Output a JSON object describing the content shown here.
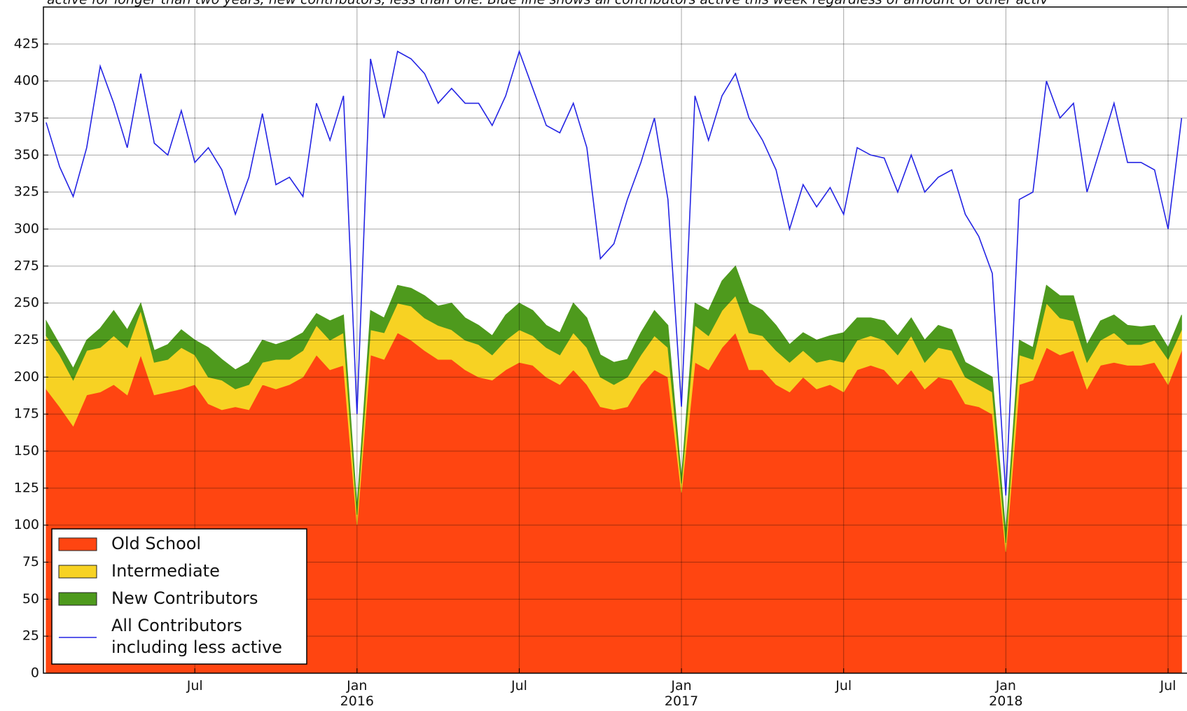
{
  "chart_data": {
    "type": "area",
    "stacked": true,
    "subtitle": "active for longer than two years, new contributors, less than one. Blue line shows all contributors active this week regardless of amount of other activ",
    "x": [
      0.5,
      1,
      1.5,
      2,
      2.5,
      3,
      3.5,
      4,
      4.5,
      5,
      5.5,
      6,
      6.5,
      7,
      7.5,
      8,
      8.5,
      9,
      9.5,
      10,
      10.5,
      11,
      11.5,
      12,
      12.5,
      13,
      13.5,
      14,
      14.5,
      15,
      15.5,
      16,
      16.5,
      17,
      17.5,
      18,
      18.5,
      19,
      19.5,
      20,
      20.5,
      21,
      21.5,
      22,
      22.5,
      23,
      23.5,
      24,
      24.5,
      25,
      25.5,
      26,
      26.5,
      27,
      27.5,
      28,
      28.5,
      29,
      29.5,
      30,
      30.5,
      31,
      31.5,
      32,
      32.5,
      33,
      33.5,
      34,
      34.5,
      35,
      35.5,
      36,
      36.5,
      37,
      37.5,
      38,
      38.5,
      39,
      39.5,
      40,
      40.5,
      41,
      41.5,
      42,
      42.5
    ],
    "series": [
      {
        "name": "Old School",
        "type": "area",
        "color": "#ff4511",
        "values": [
          192,
          180,
          167,
          188,
          190,
          195,
          188,
          215,
          188,
          190,
          192,
          195,
          182,
          178,
          180,
          178,
          195,
          192,
          195,
          200,
          215,
          205,
          208,
          100,
          215,
          212,
          230,
          225,
          218,
          212,
          212,
          205,
          200,
          198,
          205,
          210,
          208,
          200,
          195,
          205,
          195,
          180,
          178,
          180,
          195,
          205,
          200,
          122,
          210,
          205,
          220,
          230,
          205,
          205,
          195,
          190,
          200,
          192,
          195,
          190,
          205,
          208,
          205,
          195,
          205,
          192,
          200,
          198,
          182,
          180,
          175,
          82,
          195,
          198,
          220,
          215,
          218,
          192,
          208,
          210,
          208,
          208,
          210,
          195,
          218
        ]
      },
      {
        "name": "Intermediate",
        "type": "area",
        "color": "#f7d223",
        "values": [
          36,
          35,
          31,
          30,
          30,
          33,
          32,
          30,
          22,
          22,
          28,
          20,
          18,
          20,
          12,
          17,
          15,
          20,
          17,
          18,
          20,
          20,
          22,
          7,
          17,
          18,
          20,
          23,
          22,
          23,
          20,
          20,
          22,
          17,
          20,
          22,
          20,
          20,
          20,
          25,
          25,
          20,
          17,
          20,
          20,
          23,
          20,
          6,
          25,
          23,
          25,
          25,
          25,
          23,
          23,
          20,
          18,
          18,
          17,
          20,
          20,
          20,
          20,
          20,
          23,
          18,
          20,
          20,
          18,
          15,
          15,
          6,
          20,
          14,
          30,
          25,
          20,
          18,
          17,
          20,
          14,
          14,
          15,
          17,
          14
        ]
      },
      {
        "name": "New Contributors",
        "type": "area",
        "color": "#4e9a1d",
        "values": [
          10,
          7,
          8,
          7,
          13,
          17,
          12,
          5,
          8,
          10,
          12,
          10,
          20,
          14,
          13,
          15,
          15,
          10,
          13,
          12,
          8,
          13,
          12,
          5,
          13,
          10,
          12,
          12,
          15,
          13,
          18,
          15,
          13,
          13,
          17,
          18,
          17,
          15,
          15,
          20,
          20,
          15,
          15,
          12,
          15,
          17,
          15,
          4,
          15,
          17,
          20,
          20,
          20,
          17,
          17,
          12,
          12,
          15,
          16,
          20,
          15,
          12,
          13,
          13,
          12,
          15,
          15,
          14,
          10,
          10,
          10,
          7,
          10,
          8,
          12,
          15,
          17,
          12,
          13,
          12,
          13,
          12,
          10,
          8,
          10
        ]
      },
      {
        "name": "All Contributors\nincluding less active",
        "type": "line",
        "color": "#2424e4",
        "values": [
          372,
          342,
          322,
          355,
          410,
          385,
          355,
          405,
          358,
          350,
          380,
          345,
          355,
          340,
          310,
          335,
          378,
          330,
          335,
          322,
          385,
          360,
          390,
          175,
          415,
          375,
          420,
          415,
          405,
          385,
          395,
          385,
          385,
          370,
          390,
          420,
          395,
          370,
          365,
          385,
          355,
          280,
          290,
          320,
          345,
          375,
          320,
          180,
          390,
          360,
          390,
          405,
          375,
          360,
          340,
          300,
          330,
          315,
          328,
          310,
          355,
          350,
          348,
          325,
          350,
          325,
          335,
          340,
          310,
          295,
          270,
          120,
          320,
          325,
          400,
          375,
          385,
          325,
          355,
          385,
          345,
          345,
          340,
          300,
          375
        ]
      }
    ],
    "xlim": [
      0.4,
      42.7
    ],
    "xticks": [
      {
        "value": 6,
        "label": "Jul"
      },
      {
        "value": 12,
        "label": "Jan\n2016"
      },
      {
        "value": 18,
        "label": "Jul"
      },
      {
        "value": 24,
        "label": "Jan\n2017"
      },
      {
        "value": 30,
        "label": "Jul"
      },
      {
        "value": 36,
        "label": "Jan\n2018"
      },
      {
        "value": 42,
        "label": "Jul"
      }
    ],
    "ylim": [
      0,
      450
    ],
    "yticks": [
      0,
      25,
      50,
      75,
      100,
      125,
      150,
      175,
      200,
      225,
      250,
      275,
      300,
      325,
      350,
      375,
      400,
      425
    ],
    "grid": true,
    "legend": "lower left"
  }
}
